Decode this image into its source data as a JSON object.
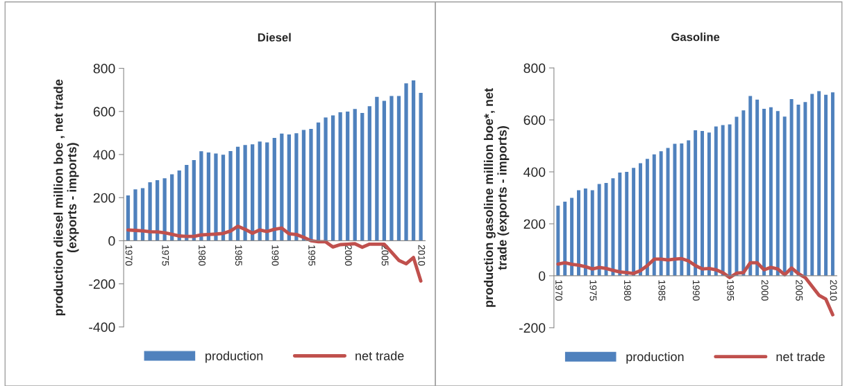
{
  "chart_data": [
    {
      "type": "bar",
      "title": "Diesel",
      "ylabel": "production diesel million boe , net trade\n(exports - imports)",
      "categories": [
        "1970",
        null,
        null,
        null,
        null,
        "1975",
        null,
        null,
        null,
        null,
        "1980",
        null,
        null,
        null,
        null,
        "1985",
        null,
        null,
        null,
        null,
        "1990",
        null,
        null,
        null,
        null,
        "1995",
        null,
        null,
        null,
        null,
        "2000",
        null,
        null,
        null,
        null,
        "2005",
        null,
        null,
        null,
        null,
        "2010"
      ],
      "series": [
        {
          "name": "production",
          "color": "#4f81bd",
          "values": [
            210,
            238,
            244,
            271,
            281,
            290,
            308,
            326,
            352,
            374,
            415,
            410,
            405,
            399,
            416,
            436,
            444,
            447,
            460,
            456,
            477,
            497,
            493,
            499,
            514,
            519,
            549,
            572,
            582,
            596,
            599,
            611,
            593,
            624,
            668,
            649,
            672,
            672,
            730,
            744,
            686
          ]
        },
        {
          "name": "net trade",
          "type": "line",
          "color": "#c0504d",
          "values": [
            50,
            48,
            46,
            42,
            41,
            37,
            30,
            22,
            20,
            20,
            27,
            29,
            31,
            34,
            45,
            67,
            53,
            35,
            50,
            43,
            53,
            59,
            32,
            29,
            16,
            0,
            -5,
            -5,
            -29,
            -18,
            -16,
            -14,
            -30,
            -16,
            -16,
            -16,
            -53,
            -91,
            -107,
            -78,
            -187
          ]
        }
      ],
      "ylim": [
        -400,
        800
      ],
      "yticks": [
        -400,
        -200,
        0,
        200,
        400,
        600,
        800
      ],
      "legend": "bottom",
      "grid": false
    },
    {
      "type": "bar",
      "title": "Gasoline",
      "ylabel": "production gasoline million boe*, net\ntrade (exports - imports)",
      "categories": [
        "1970",
        null,
        null,
        null,
        null,
        "1975",
        null,
        null,
        null,
        null,
        "1980",
        null,
        null,
        null,
        null,
        "1985",
        null,
        null,
        null,
        null,
        "1990",
        null,
        null,
        null,
        null,
        "1995",
        null,
        null,
        null,
        null,
        "2000",
        null,
        null,
        null,
        null,
        "2005",
        null,
        null,
        null,
        null,
        "2010"
      ],
      "series": [
        {
          "name": "production",
          "color": "#4f81bd",
          "values": [
            270,
            285,
            300,
            329,
            336,
            329,
            353,
            357,
            375,
            397,
            400,
            415,
            433,
            450,
            467,
            479,
            492,
            508,
            509,
            521,
            560,
            557,
            551,
            575,
            580,
            583,
            612,
            637,
            692,
            678,
            643,
            649,
            634,
            613,
            680,
            659,
            669,
            700,
            711,
            697,
            706
          ]
        },
        {
          "name": "net trade",
          "type": "line",
          "color": "#c0504d",
          "values": [
            45,
            50,
            44,
            41,
            35,
            26,
            32,
            28,
            21,
            15,
            12,
            9,
            20,
            39,
            64,
            64,
            61,
            64,
            66,
            57,
            39,
            26,
            28,
            23,
            12,
            -7,
            10,
            12,
            50,
            50,
            23,
            32,
            26,
            4,
            30,
            8,
            -7,
            -41,
            -75,
            -90,
            -150
          ]
        }
      ],
      "ylim": [
        -200,
        800
      ],
      "yticks": [
        -200,
        0,
        200,
        400,
        600,
        800
      ],
      "legend": "bottom",
      "grid": false
    }
  ]
}
